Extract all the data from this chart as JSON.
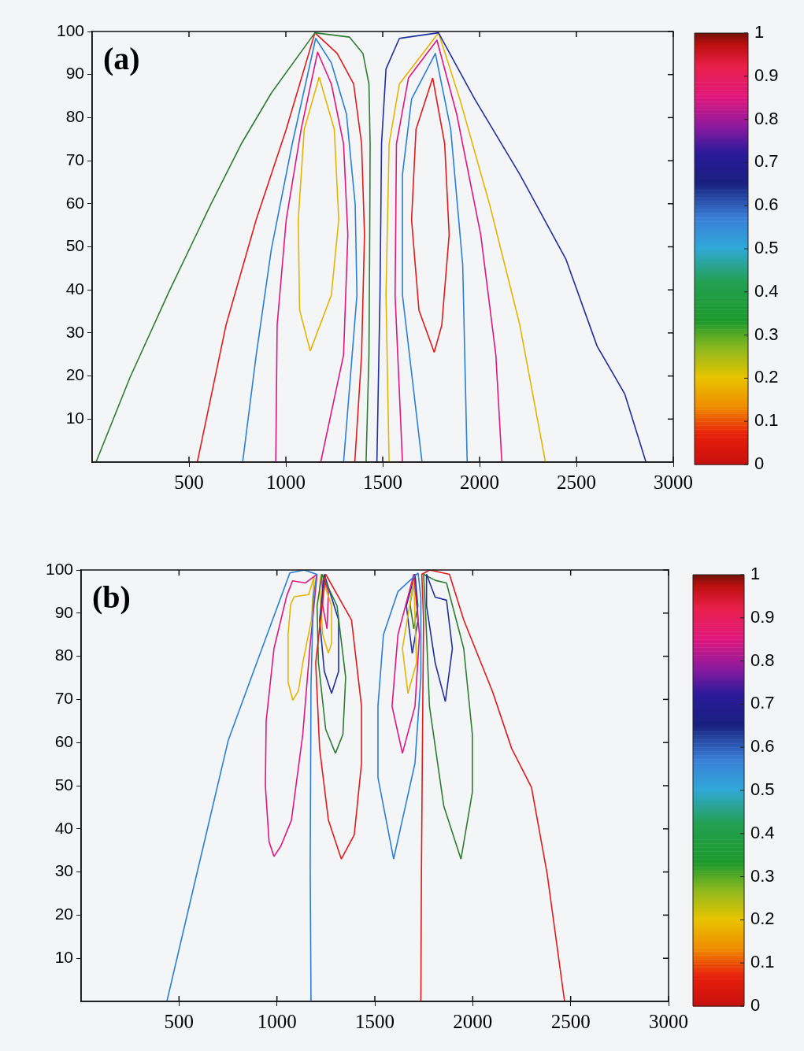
{
  "chart_data": [
    {
      "type": "line",
      "annotations": [
        "(a)"
      ],
      "xlim": [
        0,
        3000
      ],
      "xticks": [
        500,
        1000,
        1500,
        2000,
        2500,
        3000
      ],
      "ylim": [
        0,
        100
      ],
      "yticks": [
        10,
        20,
        30,
        40,
        50,
        60,
        70,
        80,
        90,
        100
      ],
      "grid": false,
      "legend": false,
      "clim": [
        0,
        1
      ],
      "cticks": [
        0,
        0.1,
        0.2,
        0.3,
        0.4,
        0.5,
        0.6,
        0.7,
        0.8,
        0.9,
        1
      ],
      "series": [
        {
          "color": "#2e7d32",
          "x": [
            20,
            195,
            398,
            612,
            770,
            925,
            1150,
            1328,
            1398,
            1429,
            1435,
            1433,
            1429,
            1414
          ],
          "values": [
            0,
            19.6,
            39.7,
            59.8,
            73.9,
            85.7,
            99.7,
            98.7,
            94.9,
            87.8,
            73.9,
            52.5,
            24.9,
            0
          ]
        },
        {
          "color": "#e01b1b",
          "x": [
            543,
            691,
            847,
            1002,
            1150,
            1265,
            1350,
            1391,
            1406,
            1391,
            1356
          ],
          "values": [
            0,
            31.8,
            56.3,
            77.3,
            99.7,
            94.9,
            87.8,
            73.9,
            52.8,
            24.9,
            0
          ]
        },
        {
          "color": "#2a7fd8",
          "x": [
            777,
            847,
            925,
            1033,
            1154,
            1235,
            1313,
            1358,
            1367,
            1298
          ],
          "values": [
            0,
            24.9,
            49.4,
            73.9,
            98.4,
            92.7,
            80.8,
            59.8,
            38.8,
            0
          ]
        },
        {
          "color": "#e0177c",
          "x": [
            948,
            955,
            1002,
            1079,
            1164,
            1235,
            1298,
            1320,
            1298,
            1180
          ],
          "values": [
            0,
            31.8,
            56.3,
            77.3,
            95.2,
            87.8,
            73.9,
            52.8,
            24.9,
            0
          ]
        },
        {
          "color": "#e6b400",
          "x": [
            1172,
            1250,
            1273,
            1235,
            1126
          ],
          "values": [
            89.4,
            77.3,
            56.3,
            38.8,
            25.8
          ]
        },
        {
          "color": "#e6b400",
          "x": [
            1126,
            1071,
            1064,
            1095,
            1172
          ],
          "values": [
            25.8,
            35.3,
            56.3,
            77.3,
            89.4
          ]
        },
        {
          "color": "#1f2fa0",
          "x": [
            1470,
            1486,
            1494,
            1517,
            1586,
            1788,
            1975,
            2208,
            2445,
            2607,
            2749,
            2859
          ],
          "values": [
            0,
            38.8,
            73.9,
            91.3,
            98.4,
            99.7,
            84.3,
            66.8,
            47.2,
            26.9,
            15.9,
            0
          ]
        },
        {
          "color": "#e6b400",
          "x": [
            1533,
            1517,
            1533,
            1586,
            1788,
            1898,
            2052,
            2208,
            2340
          ],
          "values": [
            0,
            38.8,
            73.9,
            87.8,
            99.7,
            84.3,
            59.8,
            31.8,
            0
          ]
        },
        {
          "color": "#e0177c",
          "x": [
            1602,
            1564,
            1571,
            1633,
            1780,
            1882,
            2006,
            2084,
            2115
          ],
          "values": [
            0,
            38.8,
            73.9,
            89.2,
            98,
            80.8,
            52.8,
            24.9,
            0
          ]
        },
        {
          "color": "#2a7fd8",
          "x": [
            1703,
            1602,
            1602,
            1649,
            1772,
            1851,
            1913,
            1936
          ],
          "values": [
            0,
            38.8,
            66.8,
            84.3,
            94.9,
            77.3,
            45.8,
            0
          ]
        },
        {
          "color": "#e01b1b",
          "x": [
            1758,
            1820,
            1843,
            1805,
            1766
          ],
          "values": [
            89.2,
            73.9,
            52.8,
            31.8,
            25.5
          ]
        },
        {
          "color": "#e01b1b",
          "x": [
            1766,
            1687,
            1649,
            1672,
            1758
          ],
          "values": [
            25.5,
            35.3,
            56.3,
            77.3,
            89.2
          ]
        }
      ]
    },
    {
      "type": "line",
      "annotations": [
        "(b)"
      ],
      "xlim": [
        0,
        3000
      ],
      "xticks": [
        500,
        1000,
        1500,
        2000,
        2500,
        3000
      ],
      "ylim": [
        0,
        100
      ],
      "yticks": [
        10,
        20,
        30,
        40,
        50,
        60,
        70,
        80,
        90,
        100
      ],
      "grid": false,
      "legend": false,
      "clim": [
        0,
        1
      ],
      "cticks": [
        0,
        0.1,
        0.2,
        0.3,
        0.4,
        0.5,
        0.6,
        0.7,
        0.8,
        0.9,
        1
      ],
      "series": [
        {
          "color": "#2a7fd8",
          "x": [
            438,
            591,
            752,
            897,
            1066,
            1140,
            1203,
            1186,
            1174,
            1170,
            1174
          ],
          "values": [
            0,
            29.6,
            60.6,
            78.5,
            99.3,
            100,
            99,
            93.4,
            73.4,
            31.4,
            0
          ]
        },
        {
          "color": "#e0177c",
          "x": [
            1205,
            1146,
            1080,
            1050,
            985,
            945,
            941,
            960,
            985
          ],
          "values": [
            99,
            97,
            97.5,
            94,
            81.8,
            65,
            50,
            37,
            33.6
          ]
        },
        {
          "color": "#e0177c",
          "x": [
            985,
            1020,
            1074,
            1132,
            1168,
            1205
          ],
          "values": [
            33.6,
            36,
            42,
            61.9,
            81.8,
            99
          ]
        },
        {
          "color": "#e6b400",
          "x": [
            1190,
            1162,
            1088,
            1070,
            1057,
            1057,
            1081
          ],
          "values": [
            98.4,
            94.3,
            93.8,
            92,
            85,
            74,
            69.8
          ]
        },
        {
          "color": "#e6b400",
          "x": [
            1081,
            1110,
            1132,
            1176,
            1190
          ],
          "values": [
            69.8,
            72,
            78.5,
            88.4,
            98.4
          ]
        },
        {
          "color": "#e01b1b",
          "x": [
            1249,
            1381,
            1432,
            1432,
            1395,
            1329
          ],
          "values": [
            99,
            88.4,
            68.4,
            55.2,
            38.6,
            33
          ]
        },
        {
          "color": "#e01b1b",
          "x": [
            1329,
            1263,
            1218,
            1198,
            1249
          ],
          "values": [
            33,
            42,
            58.6,
            78.5,
            99
          ]
        },
        {
          "color": "#2e7d32",
          "x": [
            1230,
            1307,
            1351,
            1337,
            1299
          ],
          "values": [
            99,
            91.7,
            75.1,
            61.9,
            57.5
          ]
        },
        {
          "color": "#2e7d32",
          "x": [
            1299,
            1249,
            1212,
            1205,
            1230
          ],
          "values": [
            57.5,
            63.1,
            78.5,
            91.7,
            99
          ]
        },
        {
          "color": "#1f2fa0",
          "x": [
            1242,
            1315,
            1315,
            1279
          ],
          "values": [
            99,
            88.4,
            76.5,
            71.4
          ]
        },
        {
          "color": "#1f2fa0",
          "x": [
            1279,
            1242,
            1218,
            1242
          ],
          "values": [
            71.4,
            76.5,
            88.4,
            99
          ]
        },
        {
          "color": "#e6b400",
          "x": [
            1225,
            1279,
            1279,
            1263
          ],
          "values": [
            99,
            91.7,
            83,
            80.7
          ]
        },
        {
          "color": "#e6b400",
          "x": [
            1263,
            1234,
            1218,
            1225
          ],
          "values": [
            80.7,
            85,
            96,
            99
          ]
        },
        {
          "color": "#e0177c",
          "x": [
            1230,
            1263,
            1256
          ],
          "values": [
            99,
            95,
            86.4
          ]
        },
        {
          "color": "#e0177c",
          "x": [
            1256,
            1234,
            1230
          ],
          "values": [
            86.4,
            91.7,
            99
          ]
        },
        {
          "color": "#e01b1b",
          "x": [
            1735,
            1738,
            1745,
            1749,
            1740,
            1780,
            1830,
            1881,
            1954,
            2101,
            2199,
            2300,
            2380,
            2469
          ],
          "values": [
            0,
            30,
            70,
            88.4,
            99,
            100,
            99.5,
            99,
            88.4,
            71.8,
            58.6,
            49.6,
            29.6,
            0
          ]
        },
        {
          "color": "#2a7fd8",
          "x": [
            1721,
            1618,
            1544,
            1516,
            1516,
            1596
          ],
          "values": [
            99.3,
            95,
            85,
            68.4,
            51.9,
            33
          ]
        },
        {
          "color": "#2a7fd8",
          "x": [
            1596,
            1705,
            1735,
            1735,
            1721
          ],
          "values": [
            33,
            55.2,
            75.1,
            93.6,
            99.3
          ]
        },
        {
          "color": "#e0177c",
          "x": [
            1699,
            1618,
            1588,
            1641
          ],
          "values": [
            99,
            85,
            68.4,
            57.5
          ]
        },
        {
          "color": "#e0177c",
          "x": [
            1641,
            1705,
            1728,
            1699
          ],
          "values": [
            57.5,
            68.4,
            85,
            99
          ]
        },
        {
          "color": "#e6b400",
          "x": [
            1699,
            1641,
            1669
          ],
          "values": [
            97.6,
            81.8,
            71.4
          ]
        },
        {
          "color": "#e6b400",
          "x": [
            1669,
            1713,
            1699
          ],
          "values": [
            71.4,
            78.5,
            97.6
          ]
        },
        {
          "color": "#1f2fa0",
          "x": [
            1705,
            1661,
            1691
          ],
          "values": [
            99,
            91.7,
            80.7
          ]
        },
        {
          "color": "#1f2fa0",
          "x": [
            1691,
            1721,
            1705
          ],
          "values": [
            80.7,
            88.4,
            99
          ]
        },
        {
          "color": "#2e7d32",
          "x": [
            1705,
            1680,
            1699
          ],
          "values": [
            99,
            92,
            86.4
          ]
        },
        {
          "color": "#2e7d32",
          "x": [
            1699,
            1720,
            1705
          ],
          "values": [
            86.4,
            91.7,
            99
          ]
        },
        {
          "color": "#1f2fa0",
          "x": [
            1764,
            1808,
            1866,
            1896,
            1860
          ],
          "values": [
            99,
            93.7,
            93,
            81.8,
            69.5
          ]
        },
        {
          "color": "#1f2fa0",
          "x": [
            1860,
            1808,
            1764,
            1764
          ],
          "values": [
            69.5,
            78.5,
            91.7,
            99
          ]
        },
        {
          "color": "#2e7d32",
          "x": [
            1749,
            1808,
            1866,
            1954,
            1998,
            1998,
            1940
          ],
          "values": [
            99,
            97.6,
            97,
            81.8,
            61.9,
            48.5,
            33
          ]
        },
        {
          "color": "#2e7d32",
          "x": [
            1940,
            1852,
            1779,
            1761,
            1749
          ],
          "values": [
            33,
            45.3,
            68.4,
            88.4,
            99
          ]
        }
      ]
    }
  ]
}
